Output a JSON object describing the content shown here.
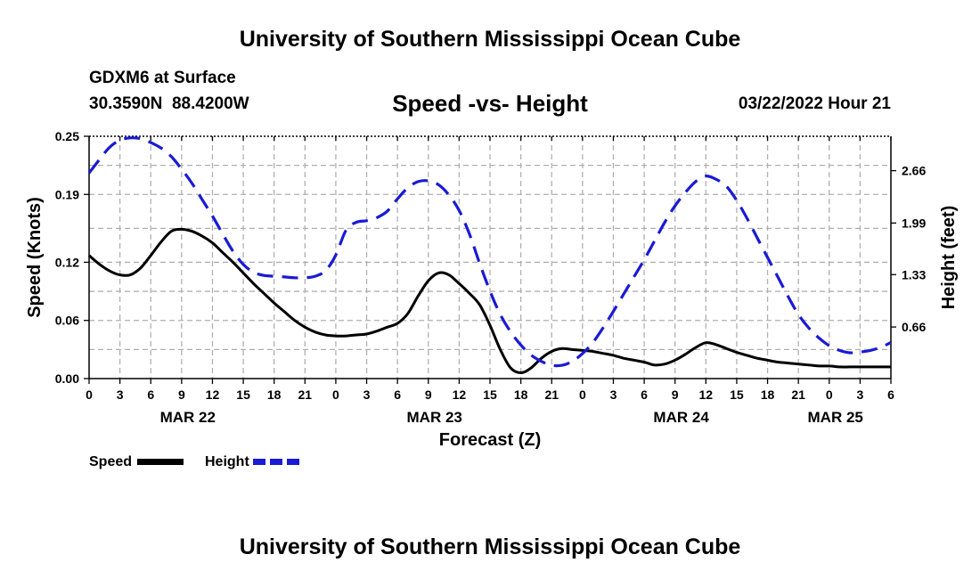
{
  "header": {
    "title": "University of Southern Mississippi Ocean Cube",
    "station": "GDXM6 at Surface",
    "lat": "30.3590N",
    "lon": "88.4200W",
    "subtitle": "Speed -vs- Height",
    "datetime": "03/22/2022 Hour 21"
  },
  "footer": {
    "title": "University of Southern Mississippi Ocean Cube"
  },
  "legend": {
    "speed_label": "Speed",
    "height_label": "Height"
  },
  "chart_data": {
    "type": "line",
    "title": "Speed -vs- Height",
    "xlabel": "Forecast (Z)",
    "ylabel": "Speed (Knots)",
    "y2label": "Height (feet)",
    "xlim": [
      0,
      78
    ],
    "ylim": [
      0,
      0.25
    ],
    "y2lim": [
      0,
      3.1
    ],
    "x_ticks": [
      0,
      3,
      6,
      9,
      12,
      15,
      18,
      21,
      24,
      27,
      30,
      33,
      36,
      39,
      42,
      45,
      48,
      51,
      54,
      57,
      60,
      63,
      66,
      69,
      72,
      75,
      78
    ],
    "x_tick_labels": [
      "0",
      "3",
      "6",
      "9",
      "12",
      "15",
      "18",
      "21",
      "0",
      "3",
      "6",
      "9",
      "12",
      "15",
      "18",
      "21",
      "0",
      "3",
      "6",
      "9",
      "12",
      "15",
      "18",
      "21",
      "0",
      "3",
      "6"
    ],
    "date_labels": [
      {
        "x": 9.6,
        "label": "MAR 22"
      },
      {
        "x": 33.6,
        "label": "MAR 23"
      },
      {
        "x": 57.6,
        "label": "MAR 24"
      },
      {
        "x": 72.6,
        "label": "MAR 25"
      }
    ],
    "y_ticks": [
      0.0,
      0.06,
      0.12,
      0.19,
      0.25
    ],
    "y_tick_labels": [
      "0.00",
      "0.06",
      "0.12",
      "0.19",
      "0.25"
    ],
    "y2_ticks": [
      0.66,
      1.33,
      1.99,
      2.66
    ],
    "y2_tick_labels": [
      "0.66",
      "1.33",
      "1.99",
      "2.66"
    ],
    "colors": {
      "speed": "#000000",
      "height": "#1a1ad6",
      "grid": "#b0b0b0"
    },
    "series": [
      {
        "name": "Speed",
        "axis": "left",
        "style": "solid",
        "x": [
          0,
          1,
          2,
          3,
          4,
          5,
          6,
          7,
          8,
          9,
          10,
          11,
          12,
          13,
          14,
          15,
          16,
          17,
          18,
          19,
          20,
          21,
          22,
          23,
          24,
          25,
          26,
          27,
          28,
          29,
          30,
          31,
          32,
          33,
          34,
          35,
          36,
          37,
          38,
          39,
          40,
          41,
          42,
          43,
          44,
          45,
          46,
          47,
          48,
          49,
          50,
          51,
          52,
          53,
          54,
          55,
          56,
          57,
          58,
          59,
          60,
          61,
          62,
          63,
          64,
          65,
          66,
          67,
          68,
          69,
          70,
          71,
          72,
          73,
          74,
          75,
          76,
          77,
          78
        ],
        "values": [
          0.127,
          0.118,
          0.111,
          0.107,
          0.107,
          0.114,
          0.127,
          0.141,
          0.152,
          0.154,
          0.152,
          0.147,
          0.14,
          0.13,
          0.12,
          0.109,
          0.098,
          0.088,
          0.078,
          0.069,
          0.06,
          0.053,
          0.048,
          0.045,
          0.044,
          0.044,
          0.045,
          0.046,
          0.049,
          0.053,
          0.057,
          0.067,
          0.085,
          0.101,
          0.109,
          0.107,
          0.098,
          0.088,
          0.076,
          0.055,
          0.03,
          0.011,
          0.006,
          0.011,
          0.021,
          0.028,
          0.031,
          0.03,
          0.029,
          0.028,
          0.026,
          0.024,
          0.021,
          0.019,
          0.017,
          0.014,
          0.015,
          0.019,
          0.025,
          0.032,
          0.037,
          0.035,
          0.031,
          0.027,
          0.024,
          0.021,
          0.019,
          0.017,
          0.016,
          0.015,
          0.014,
          0.013,
          0.013,
          0.012,
          0.012,
          0.012,
          0.012,
          0.012,
          0.012
        ]
      },
      {
        "name": "Height",
        "axis": "right",
        "style": "dashed",
        "x": [
          0,
          1,
          2,
          3,
          4,
          5,
          6,
          7,
          8,
          9,
          10,
          11,
          12,
          13,
          14,
          15,
          16,
          17,
          18,
          19,
          20,
          21,
          22,
          23,
          24,
          25,
          26,
          27,
          28,
          29,
          30,
          31,
          32,
          33,
          34,
          35,
          36,
          37,
          38,
          39,
          40,
          41,
          42,
          43,
          44,
          45,
          46,
          47,
          48,
          49,
          50,
          51,
          52,
          53,
          54,
          55,
          56,
          57,
          58,
          59,
          60,
          61,
          62,
          63,
          64,
          65,
          66,
          67,
          68,
          69,
          70,
          71,
          72,
          73,
          74,
          75,
          76,
          77,
          78
        ],
        "values": [
          2.63,
          2.8,
          2.96,
          3.05,
          3.08,
          3.07,
          3.02,
          2.95,
          2.84,
          2.68,
          2.5,
          2.29,
          2.08,
          1.85,
          1.63,
          1.46,
          1.36,
          1.32,
          1.31,
          1.3,
          1.29,
          1.29,
          1.31,
          1.38,
          1.58,
          1.9,
          2.0,
          2.02,
          2.06,
          2.14,
          2.3,
          2.44,
          2.52,
          2.53,
          2.48,
          2.35,
          2.15,
          1.85,
          1.47,
          1.12,
          0.82,
          0.6,
          0.43,
          0.3,
          0.22,
          0.17,
          0.17,
          0.22,
          0.32,
          0.46,
          0.65,
          0.86,
          1.08,
          1.3,
          1.52,
          1.76,
          2.0,
          2.21,
          2.38,
          2.52,
          2.59,
          2.55,
          2.46,
          2.28,
          2.05,
          1.8,
          1.55,
          1.3,
          1.05,
          0.82,
          0.65,
          0.52,
          0.42,
          0.36,
          0.33,
          0.34,
          0.36,
          0.4,
          0.46
        ]
      }
    ]
  }
}
